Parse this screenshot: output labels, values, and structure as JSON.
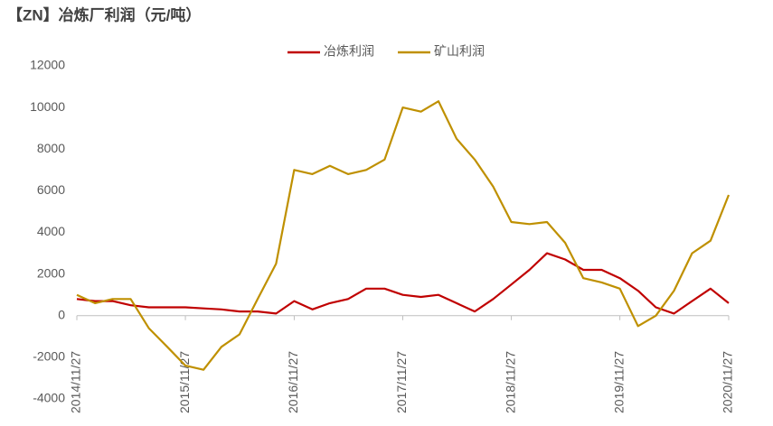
{
  "chart_data": {
    "type": "line",
    "title": "【ZN】冶炼厂利润（元/吨）",
    "x": [
      "2014/11/27",
      "2015/01/27",
      "2015/03/27",
      "2015/05/27",
      "2015/07/27",
      "2015/09/27",
      "2015/11/27",
      "2016/01/27",
      "2016/03/27",
      "2016/05/27",
      "2016/07/27",
      "2016/09/27",
      "2016/11/27",
      "2017/01/27",
      "2017/03/27",
      "2017/05/27",
      "2017/07/27",
      "2017/09/27",
      "2017/11/27",
      "2018/01/27",
      "2018/03/27",
      "2018/05/27",
      "2018/07/27",
      "2018/09/27",
      "2018/11/27",
      "2019/01/27",
      "2019/03/27",
      "2019/05/27",
      "2019/07/27",
      "2019/09/27",
      "2019/11/27",
      "2020/01/27",
      "2020/03/27",
      "2020/05/27",
      "2020/07/27",
      "2020/09/27",
      "2020/11/27"
    ],
    "series": [
      {
        "name": "冶炼利润",
        "color": "#c00000",
        "values": [
          800,
          700,
          700,
          500,
          400,
          400,
          400,
          350,
          300,
          200,
          200,
          100,
          700,
          300,
          600,
          800,
          1300,
          1300,
          1000,
          900,
          1000,
          600,
          200,
          800,
          1500,
          2200,
          3000,
          2700,
          2200,
          2200,
          1800,
          1200,
          400,
          100,
          700,
          1300,
          600
        ]
      },
      {
        "name": "矿山利润",
        "color": "#bf9000",
        "values": [
          1000,
          600,
          800,
          800,
          -600,
          -1500,
          -2400,
          -2600,
          -1500,
          -900,
          800,
          2500,
          7000,
          6800,
          7200,
          6800,
          7000,
          7500,
          10000,
          9800,
          10300,
          8500,
          7500,
          6200,
          4500,
          4400,
          4500,
          3500,
          1800,
          1600,
          1300,
          -500,
          0,
          1200,
          3000,
          3600,
          5800
        ]
      }
    ],
    "xlim": [
      "2014/11/27",
      "2020/11/27"
    ],
    "xticks": [
      "2014/11/27",
      "2015/11/27",
      "2016/11/27",
      "2017/11/27",
      "2018/11/27",
      "2019/11/27",
      "2020/11/27"
    ],
    "ylim": [
      -4000,
      12000
    ],
    "yticks": [
      -4000,
      -2000,
      0,
      2000,
      4000,
      6000,
      8000,
      10000,
      12000
    ],
    "legend": "top"
  }
}
